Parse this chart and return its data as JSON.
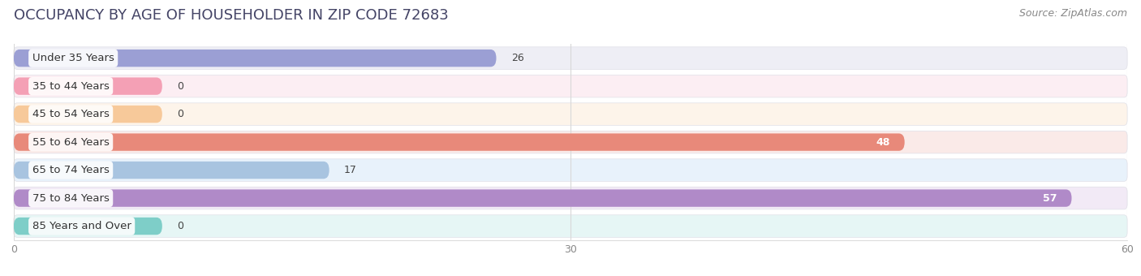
{
  "title": "OCCUPANCY BY AGE OF HOUSEHOLDER IN ZIP CODE 72683",
  "source": "Source: ZipAtlas.com",
  "categories": [
    "Under 35 Years",
    "35 to 44 Years",
    "45 to 54 Years",
    "55 to 64 Years",
    "65 to 74 Years",
    "75 to 84 Years",
    "85 Years and Over"
  ],
  "values": [
    26,
    0,
    0,
    48,
    17,
    57,
    0
  ],
  "bar_colors": [
    "#9b9fd4",
    "#f4a0b5",
    "#f7c99a",
    "#e8897a",
    "#a8c4e0",
    "#b08ac8",
    "#7ecec8"
  ],
  "row_bg_colors": [
    "#eeeef5",
    "#fceef3",
    "#fdf4ea",
    "#faeae8",
    "#e8f2fb",
    "#f2eaf6",
    "#e6f6f5"
  ],
  "xlim": [
    0,
    60
  ],
  "xticks": [
    0,
    30,
    60
  ],
  "title_fontsize": 13,
  "source_fontsize": 9,
  "label_fontsize": 9.5,
  "value_fontsize": 9,
  "background_color": "#ffffff",
  "bar_height": 0.62,
  "label_bg_color": "#ffffff",
  "value_inside_threshold": 40,
  "zero_stub_value": 8
}
